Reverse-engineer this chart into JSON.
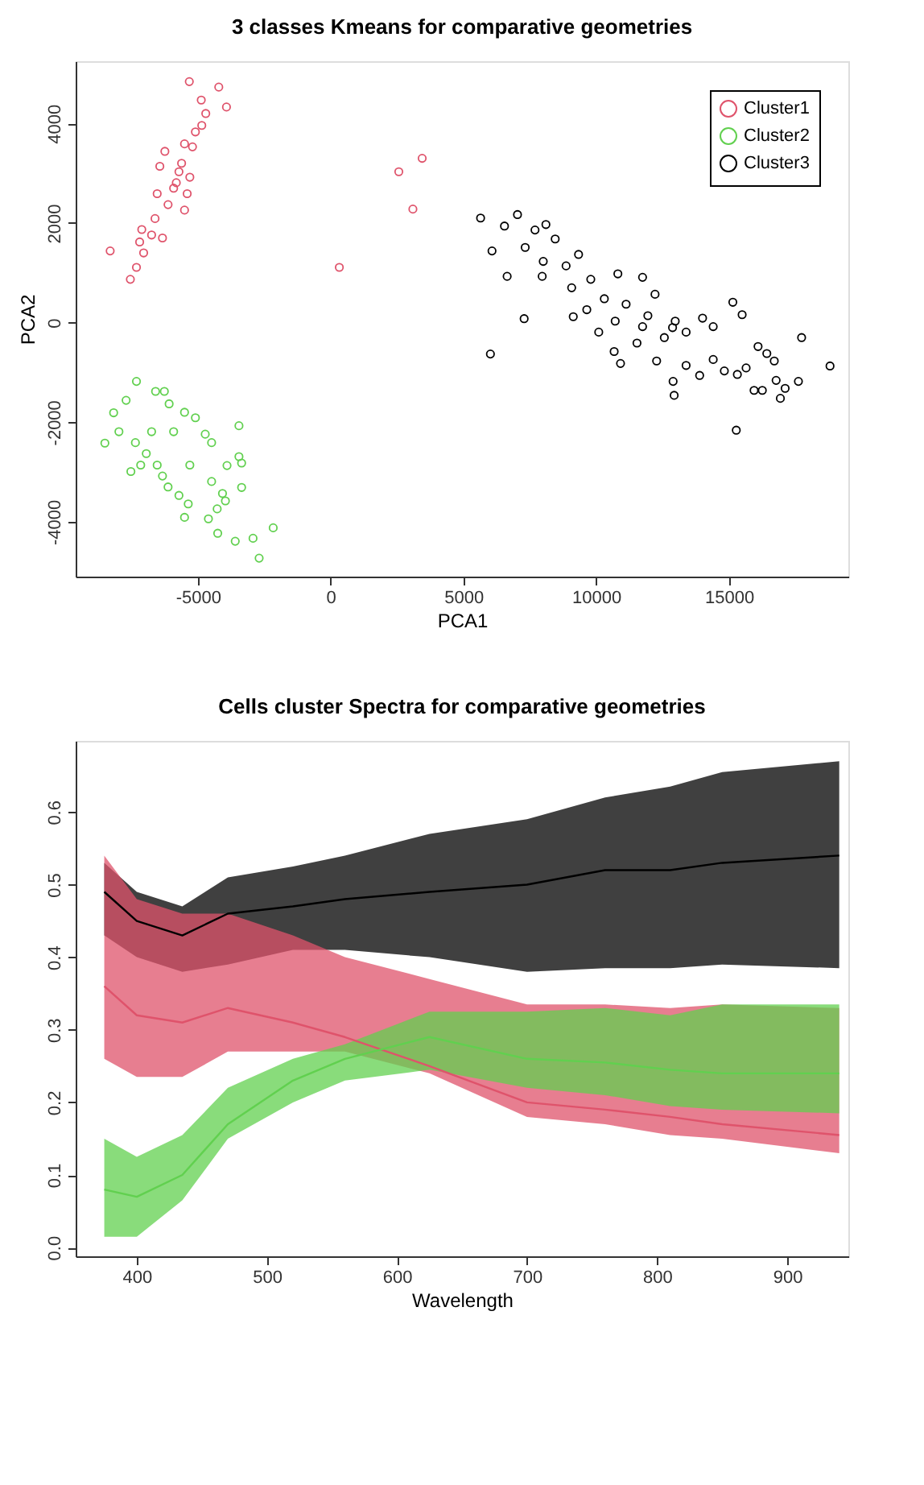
{
  "chart_data": [
    {
      "type": "scatter",
      "title": "3 classes Kmeans for comparative geometries",
      "xlabel": "PCA1",
      "ylabel": "PCA2",
      "xlim": [
        -9600,
        19500
      ],
      "ylim": [
        -5100,
        5250
      ],
      "xticks": [
        -5000,
        0,
        5000,
        10000,
        15000
      ],
      "yticks": [
        -4000,
        -2000,
        0,
        2000,
        4000
      ],
      "grid": false,
      "legend": "top right",
      "marker": "circle",
      "series": [
        {
          "name": "Cluster1",
          "color": "#df536b",
          "x": [
            -5320,
            -4210,
            -4870,
            -3920,
            -4700,
            -4850,
            -5090,
            -5500,
            -6240,
            -6430,
            -5710,
            -5910,
            -5400,
            -6530,
            -6120,
            -6610,
            -5500,
            -7110,
            -6740,
            -7190,
            -8300,
            -7040,
            -7310,
            -7540,
            -6330,
            -5200,
            -5610,
            -5300,
            -5810,
            330,
            2570,
            3450,
            3100
          ],
          "values": [
            4840,
            4730,
            4470,
            4330,
            4200,
            3960,
            3830,
            3590,
            3440,
            3140,
            3030,
            2700,
            2590,
            2590,
            2370,
            2090,
            2260,
            1870,
            1760,
            1620,
            1440,
            1400,
            1110,
            870,
            1700,
            3530,
            3200,
            2920,
            2810,
            1110,
            3030,
            3300,
            2280
          ]
        },
        {
          "name": "Cluster2",
          "color": "#61d04f",
          "x": [
            -7310,
            -8500,
            -7700,
            -6590,
            -6260,
            -6080,
            -8170,
            -7970,
            -7350,
            -6940,
            -6530,
            -6740,
            -5910,
            -5500,
            -5090,
            -3450,
            -4720,
            -4480,
            -3450,
            -3350,
            -3900,
            -3350,
            -4480,
            -4070,
            -3960,
            -4270,
            -4600,
            -4250,
            -3590,
            -2920,
            -2160,
            -2690,
            -5500,
            -5360,
            -5710,
            -6120,
            -7520,
            -7150,
            -6330,
            -5300
          ],
          "values": [
            -1180,
            -2420,
            -1560,
            -1380,
            -1380,
            -1630,
            -1810,
            -2190,
            -2410,
            -2630,
            -2860,
            -2190,
            -2190,
            -1800,
            -1910,
            -2070,
            -2240,
            -2410,
            -2690,
            -2820,
            -2870,
            -3310,
            -3190,
            -3430,
            -3580,
            -3740,
            -3940,
            -4230,
            -4390,
            -4330,
            -4120,
            -4730,
            -3910,
            -3640,
            -3470,
            -3300,
            -2990,
            -2860,
            -3080,
            -2860
          ]
        },
        {
          "name": "Cluster3",
          "color": "#000000",
          "x": [
            5650,
            7040,
            6550,
            8110,
            7700,
            8460,
            6080,
            7330,
            8010,
            9340,
            6650,
            7970,
            8870,
            9800,
            10820,
            11750,
            9080,
            10310,
            11130,
            12220,
            9650,
            7290,
            9140,
            10720,
            11950,
            12980,
            14010,
            15150,
            15500,
            6020,
            10680,
            11540,
            12570,
            13390,
            14410,
            10920,
            12280,
            13390,
            14410,
            14830,
            13900,
            12900,
            12940,
            15320,
            15650,
            16100,
            16430,
            16710,
            16780,
            15950,
            16260,
            16940,
            17120,
            17620,
            17740,
            18810,
            15280,
            10100,
            11750,
            12880
          ],
          "values": [
            2100,
            2170,
            1940,
            1970,
            1860,
            1680,
            1440,
            1510,
            1230,
            1370,
            930,
            930,
            1140,
            870,
            980,
            910,
            700,
            480,
            370,
            570,
            260,
            80,
            120,
            30,
            140,
            30,
            90,
            410,
            160,
            -630,
            -580,
            -410,
            -300,
            -190,
            -80,
            -820,
            -770,
            -860,
            -740,
            -970,
            -1060,
            -1180,
            -1460,
            -1040,
            -910,
            -480,
            -620,
            -770,
            -1160,
            -1360,
            -1360,
            -1520,
            -1320,
            -1180,
            -300,
            -870,
            -2160,
            -190,
            -80,
            -100
          ]
        }
      ]
    },
    {
      "type": "line",
      "title": "Cells cluster Spectra for comparative geometries",
      "xlabel": "Wavelength",
      "xlim": [
        353,
        947
      ],
      "ylim": [
        -0.012,
        0.698
      ],
      "xticks": [
        400,
        500,
        600,
        700,
        800,
        900
      ],
      "yticks": [
        {
          "value": 0,
          "label": "0.0"
        },
        0.1,
        0.2,
        0.3,
        0.4,
        0.5,
        0.6
      ],
      "grid": false,
      "legend": false,
      "line_style": "solid",
      "x": [
        375,
        400,
        435,
        470,
        520,
        560,
        625,
        700,
        760,
        810,
        850,
        940
      ],
      "series": [
        {
          "color": "#000000",
          "values": [
            0.49,
            0.45,
            0.43,
            0.46,
            0.47,
            0.48,
            0.49,
            0.5,
            0.52,
            0.52,
            0.53,
            0.54
          ],
          "lower": [
            0.43,
            0.4,
            0.38,
            0.39,
            0.41,
            0.41,
            0.4,
            0.38,
            0.385,
            0.385,
            0.39,
            0.385
          ],
          "upper": [
            0.53,
            0.49,
            0.47,
            0.51,
            0.525,
            0.54,
            0.57,
            0.59,
            0.62,
            0.635,
            0.655,
            0.67
          ]
        },
        {
          "color": "#df536b",
          "values": [
            0.36,
            0.32,
            0.31,
            0.33,
            0.31,
            0.29,
            0.25,
            0.2,
            0.19,
            0.18,
            0.17,
            0.155
          ],
          "lower": [
            0.26,
            0.235,
            0.235,
            0.27,
            0.27,
            0.27,
            0.24,
            0.18,
            0.17,
            0.155,
            0.15,
            0.13
          ],
          "upper": [
            0.54,
            0.48,
            0.46,
            0.46,
            0.43,
            0.4,
            0.37,
            0.335,
            0.335,
            0.33,
            0.335,
            0.33
          ]
        },
        {
          "color": "#61d04f",
          "values": [
            0.08,
            0.07,
            0.1,
            0.17,
            0.23,
            0.26,
            0.29,
            0.26,
            0.255,
            0.245,
            0.24,
            0.24
          ],
          "lower": [
            0.015,
            0.015,
            0.065,
            0.15,
            0.2,
            0.23,
            0.245,
            0.22,
            0.21,
            0.195,
            0.19,
            0.185
          ],
          "upper": [
            0.15,
            0.125,
            0.155,
            0.22,
            0.26,
            0.28,
            0.325,
            0.325,
            0.33,
            0.32,
            0.335,
            0.335
          ]
        }
      ]
    }
  ]
}
